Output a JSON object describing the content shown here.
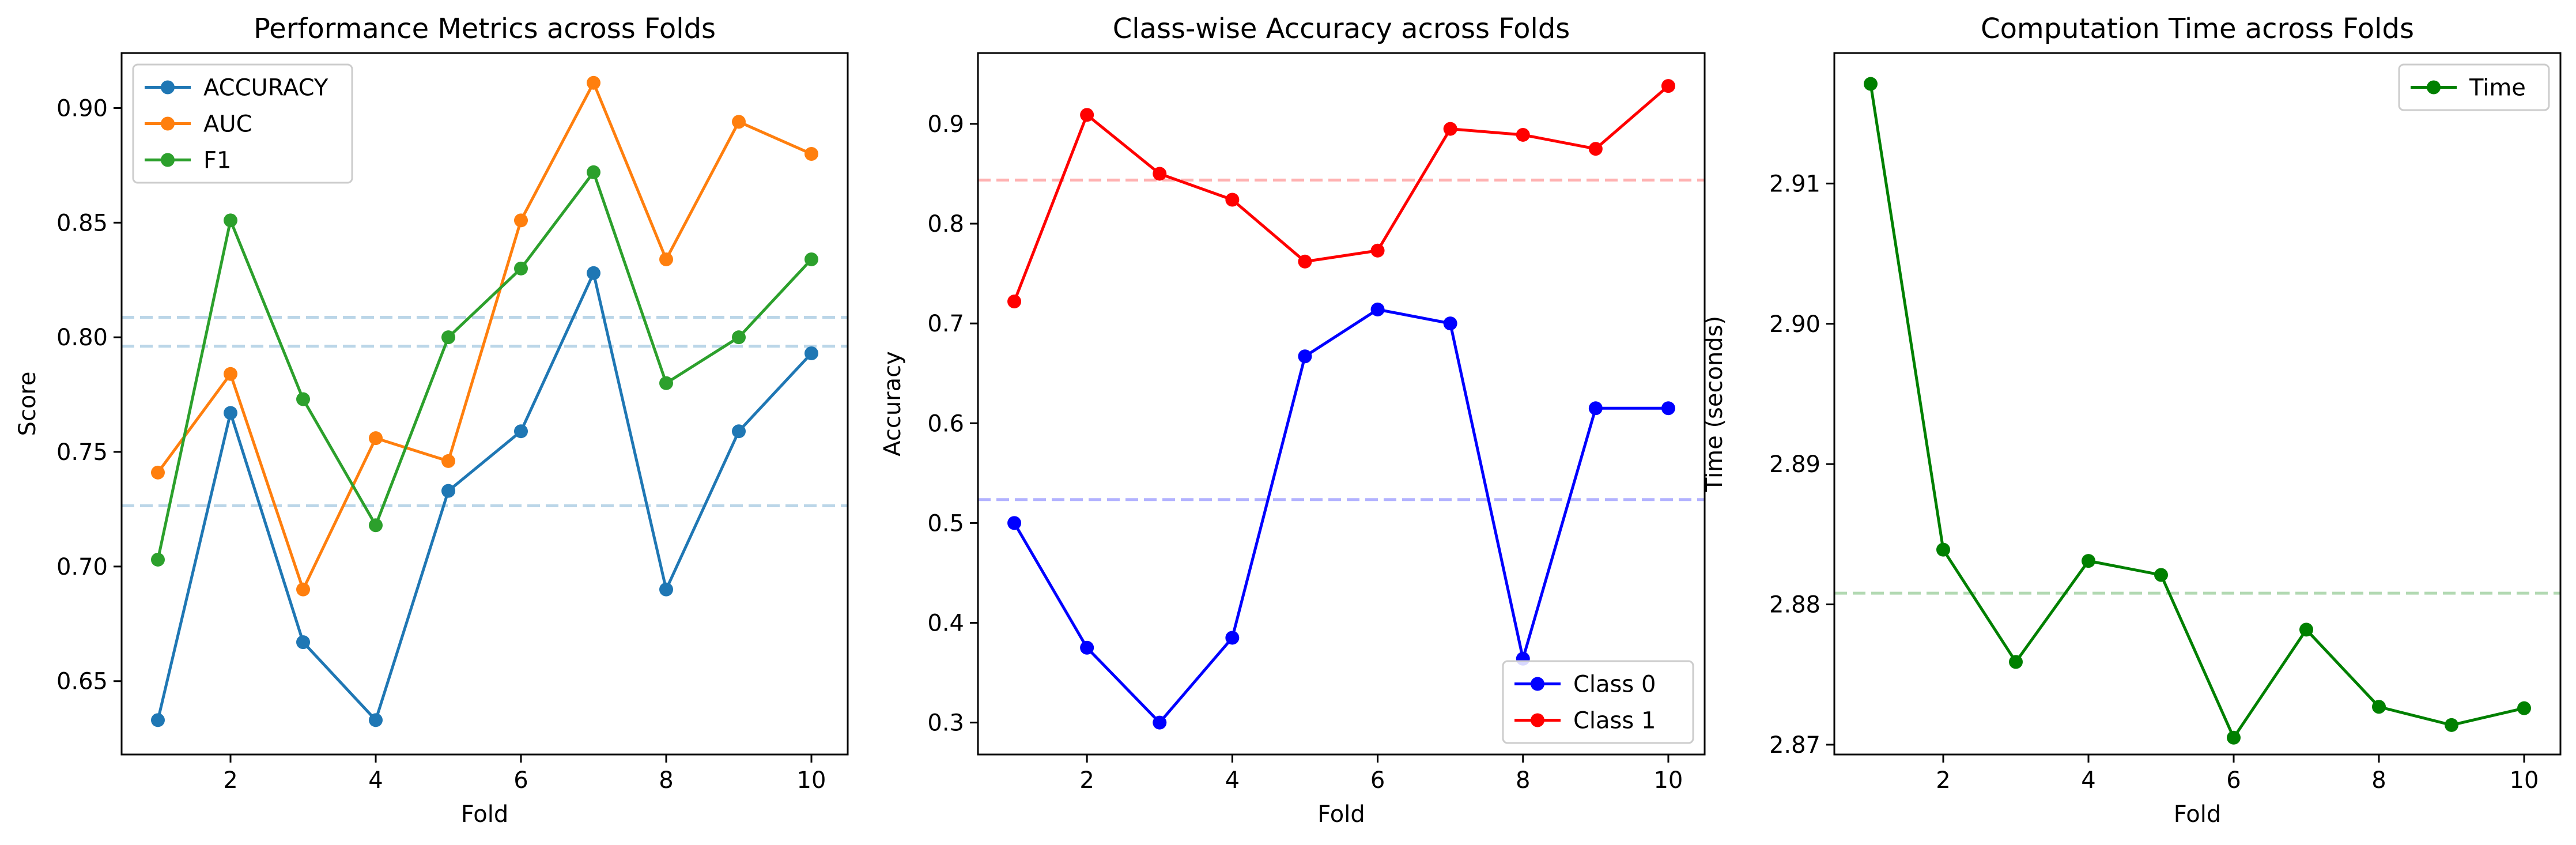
{
  "chart_data": [
    {
      "type": "line",
      "title": "Performance Metrics across Folds",
      "xlabel": "Fold",
      "ylabel": "Score",
      "x": [
        1,
        2,
        3,
        4,
        5,
        6,
        7,
        8,
        9,
        10
      ],
      "xlim": [
        0.5,
        10.5
      ],
      "ylim": [
        0.618,
        0.924
      ],
      "xticks": [
        2,
        4,
        6,
        8,
        10
      ],
      "yticks": [
        0.65,
        0.7,
        0.75,
        0.8,
        0.85,
        0.9
      ],
      "ytick_labels": [
        "0.65",
        "0.70",
        "0.75",
        "0.80",
        "0.85",
        "0.90"
      ],
      "grid": false,
      "legend_position": "upper-left",
      "series": [
        {
          "name": "ACCURACY",
          "color": "#1f77b4",
          "values": [
            0.633,
            0.767,
            0.667,
            0.633,
            0.733,
            0.759,
            0.828,
            0.69,
            0.759,
            0.793
          ]
        },
        {
          "name": "AUC",
          "color": "#ff7f0e",
          "values": [
            0.741,
            0.784,
            0.69,
            0.756,
            0.746,
            0.851,
            0.911,
            0.834,
            0.894,
            0.88
          ]
        },
        {
          "name": "F1",
          "color": "#2ca02c",
          "values": [
            0.703,
            0.851,
            0.773,
            0.718,
            0.8,
            0.83,
            0.872,
            0.78,
            0.8,
            0.834
          ]
        }
      ],
      "reference_lines": [
        {
          "y": 0.7265,
          "color": "#1f77b4",
          "style": "dashed"
        },
        {
          "y": 0.8087,
          "color": "#1f77b4",
          "style": "dashed"
        },
        {
          "y": 0.7961,
          "color": "#1f77b4",
          "style": "dashed"
        }
      ]
    },
    {
      "type": "line",
      "title": "Class-wise Accuracy across Folds",
      "xlabel": "Fold",
      "ylabel": "Accuracy",
      "x": [
        1,
        2,
        3,
        4,
        5,
        6,
        7,
        8,
        9,
        10
      ],
      "xlim": [
        0.5,
        10.5
      ],
      "ylim": [
        0.268,
        0.971
      ],
      "xticks": [
        2,
        4,
        6,
        8,
        10
      ],
      "yticks": [
        0.3,
        0.4,
        0.5,
        0.6,
        0.7,
        0.8,
        0.9
      ],
      "ytick_labels": [
        "0.3",
        "0.4",
        "0.5",
        "0.6",
        "0.7",
        "0.8",
        "0.9"
      ],
      "grid": false,
      "legend_position": "lower-right",
      "series": [
        {
          "name": "Class 0",
          "color": "#0000ff",
          "values": [
            0.5,
            0.375,
            0.3,
            0.385,
            0.667,
            0.714,
            0.7,
            0.364,
            0.615,
            0.615
          ]
        },
        {
          "name": "Class 1",
          "color": "#ff0000",
          "values": [
            0.722,
            0.909,
            0.85,
            0.824,
            0.762,
            0.773,
            0.895,
            0.889,
            0.875,
            0.938
          ]
        }
      ],
      "reference_lines": [
        {
          "y": 0.5235,
          "color": "#0000ff",
          "style": "dashed"
        },
        {
          "y": 0.8437,
          "color": "#ff0000",
          "style": "dashed"
        }
      ]
    },
    {
      "type": "line",
      "title": "Computation Time across Folds",
      "xlabel": "Fold",
      "ylabel": "Time (seconds)",
      "x": [
        1,
        2,
        3,
        4,
        5,
        6,
        7,
        8,
        9,
        10
      ],
      "xlim": [
        0.5,
        10.5
      ],
      "ylim": [
        2.8693,
        2.9193
      ],
      "xticks": [
        2,
        4,
        6,
        8,
        10
      ],
      "yticks": [
        2.87,
        2.88,
        2.89,
        2.9,
        2.91
      ],
      "ytick_labels": [
        "2.87",
        "2.88",
        "2.89",
        "2.90",
        "2.91"
      ],
      "grid": false,
      "legend_position": "upper-right",
      "series": [
        {
          "name": "Time",
          "color": "#008000",
          "values": [
            2.9171,
            2.8839,
            2.8759,
            2.8831,
            2.8821,
            2.8705,
            2.8782,
            2.8727,
            2.8714,
            2.8726
          ]
        }
      ],
      "reference_lines": [
        {
          "y": 2.8808,
          "color": "#008000",
          "style": "dashed"
        }
      ]
    }
  ]
}
